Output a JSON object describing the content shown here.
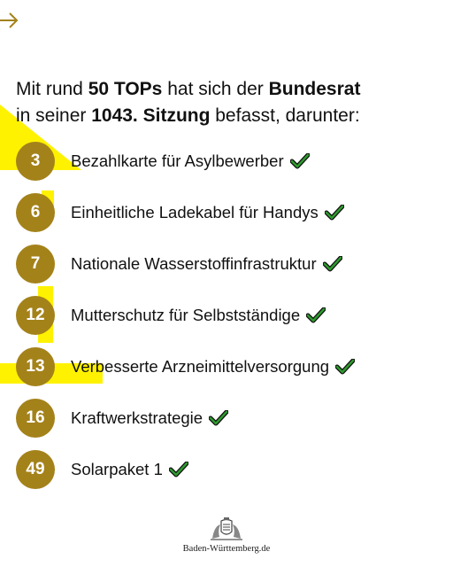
{
  "nav": {
    "arrow_icon": "arrow-right-icon"
  },
  "headline": {
    "p1": "Mit rund ",
    "b1": "50 TOPs",
    "p2": " hat sich der ",
    "b2": "Bundesrat",
    "p3": "in seiner ",
    "b3": "1043. Sitzung",
    "p4": " befasst, darunter:"
  },
  "topics": [
    {
      "number": "3",
      "label": "Bezahlkarte für Asylbewerber",
      "icon": "checkmark-icon"
    },
    {
      "number": "6",
      "label": "Einheitliche Ladekabel für Handys",
      "icon": "checkmark-icon"
    },
    {
      "number": "7",
      "label": "Nationale Wasserstoffinfrastruktur",
      "icon": "checkmark-icon"
    },
    {
      "number": "12",
      "label": "Mutterschutz für Selbstständige",
      "icon": "checkmark-icon"
    },
    {
      "number": "13",
      "label": "Verbesserte Arzneimittelversorgung",
      "icon": "checkmark-icon"
    },
    {
      "number": "16",
      "label": "Kraftwerkstrategie",
      "icon": "checkmark-icon"
    },
    {
      "number": "49",
      "label": "Solarpaket 1",
      "icon": "checkmark-icon"
    }
  ],
  "footer": {
    "logo_icon": "coat-of-arms-icon",
    "text": "Baden-Württemberg.de"
  },
  "colors": {
    "gold": "#a4821a",
    "yellow": "#fff200",
    "check": "#2e9a2e",
    "arrow": "#a4821a"
  }
}
